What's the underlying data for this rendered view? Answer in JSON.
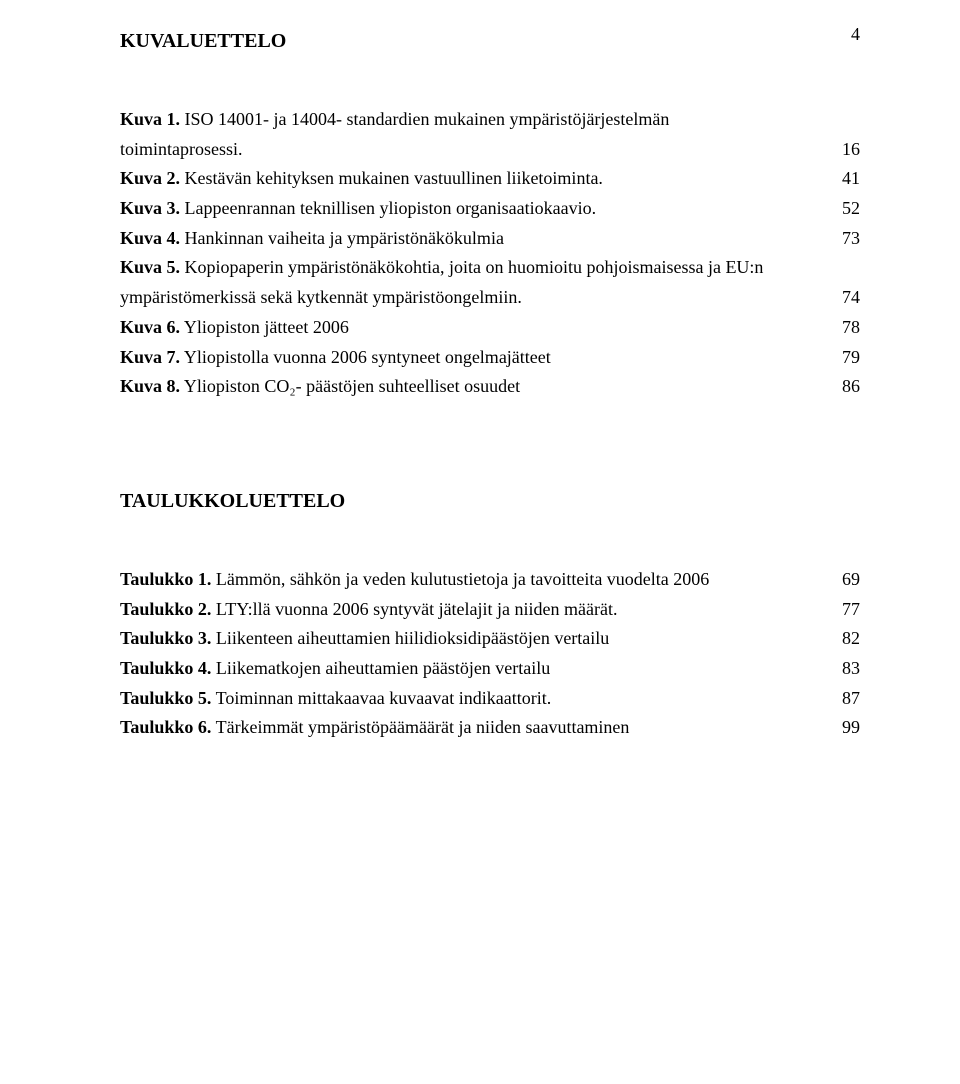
{
  "page_number": "4",
  "sections": [
    {
      "title": "KUVALUETTELO",
      "entries": [
        {
          "boldPrefix": "Kuva 1.",
          "text": " ISO 14001- ja 14004- standardien mukainen ympäristöjärjestelmän",
          "cont": "toimintaprosessi.",
          "page": "16"
        },
        {
          "boldPrefix": "Kuva 2.",
          "text": " Kestävän kehityksen mukainen vastuullinen liiketoiminta. ",
          "page": "41"
        },
        {
          "boldPrefix": "Kuva 3.",
          "text": " Lappeenrannan teknillisen yliopiston organisaatiokaavio. ",
          "page": "52"
        },
        {
          "boldPrefix": "Kuva 4.",
          "text": " Hankinnan vaiheita ja ympäristönäkökulmia",
          "page": "73"
        },
        {
          "boldPrefix": "Kuva 5.",
          "text": " Kopiopaperin ympäristönäkökohtia, joita on huomioitu pohjoismaisessa ja EU:n",
          "cont": "ympäristömerkissä sekä kytkennät ympäristöongelmiin. ",
          "page": "74"
        },
        {
          "boldPrefix": "Kuva 6.",
          "text": " Yliopiston jätteet 2006",
          "page": "78"
        },
        {
          "boldPrefix": "Kuva 7.",
          "text": " Yliopistolla vuonna 2006 syntyneet ongelmajätteet",
          "page": "79"
        },
        {
          "boldPrefix": "Kuva 8.",
          "text": " Yliopiston CO₂- päästöjen suhteelliset osuudet",
          "page": "86"
        }
      ]
    },
    {
      "title": "TAULUKKOLUETTELO",
      "entries": [
        {
          "boldPrefix": "Taulukko 1.",
          "text": " Lämmön, sähkön ja veden kulutustietoja ja tavoitteita vuodelta 2006",
          "page": "69"
        },
        {
          "boldPrefix": "Taulukko 2.",
          "text": " LTY:llä vuonna 2006 syntyvät jätelajit ja niiden määrät.",
          "page": "77"
        },
        {
          "boldPrefix": "Taulukko 3.",
          "text": " Liikenteen aiheuttamien hiilidioksidipäästöjen vertailu",
          "page": "82"
        },
        {
          "boldPrefix": "Taulukko 4.",
          "text": " Liikematkojen aiheuttamien päästöjen vertailu",
          "page": "83"
        },
        {
          "boldPrefix": "Taulukko 5.",
          "text": " Toiminnan mittakaavaa kuvaavat indikaattorit.",
          "page": "87"
        },
        {
          "boldPrefix": "Taulukko 6.",
          "text": " Tärkeimmät ympäristöpäämäärät ja niiden saavuttaminen",
          "page": "99"
        }
      ]
    }
  ]
}
